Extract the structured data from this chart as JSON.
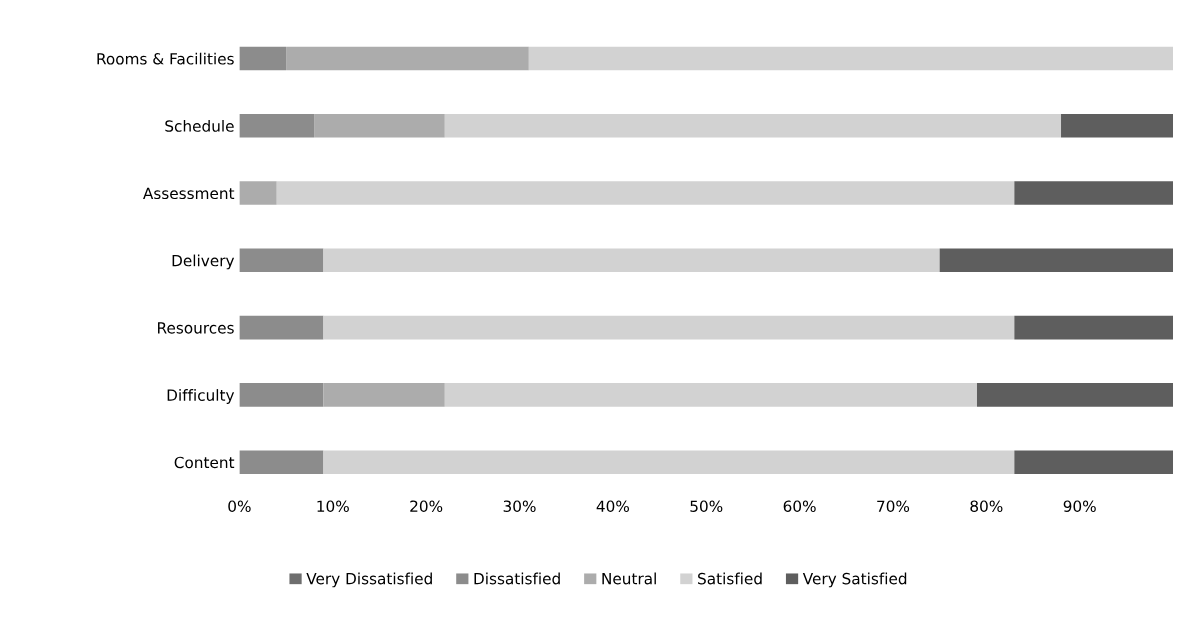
{
  "chart_data": {
    "type": "bar",
    "orientation": "horizontal",
    "stacked": true,
    "categories": [
      "Rooms & Facilities",
      "Schedule",
      "Assessment",
      "Delivery",
      "Resources",
      "Difficulty",
      "Content"
    ],
    "series": [
      {
        "name": "Very Dissatisfied",
        "color": "#6e6e6e",
        "values": [
          0,
          0,
          0,
          0,
          0,
          0,
          0
        ]
      },
      {
        "name": "Dissatisfied",
        "color": "#8c8c8c",
        "values": [
          5,
          8,
          0,
          9,
          9,
          9,
          9
        ]
      },
      {
        "name": "Neutral",
        "color": "#acacac",
        "values": [
          26,
          14,
          4,
          0,
          0,
          13,
          0
        ]
      },
      {
        "name": "Satisfied",
        "color": "#d2d2d2",
        "values": [
          69,
          66,
          79,
          66,
          74,
          57,
          74
        ]
      },
      {
        "name": "Very Satisfied",
        "color": "#5e5e5e",
        "values": [
          0,
          12,
          17,
          25,
          17,
          21,
          17
        ]
      }
    ],
    "xlim": [
      0,
      100
    ],
    "xticks": [
      {
        "value": 0,
        "label": "0%"
      },
      {
        "value": 10,
        "label": "10%"
      },
      {
        "value": 20,
        "label": "20%"
      },
      {
        "value": 30,
        "label": "30%"
      },
      {
        "value": 40,
        "label": "40%"
      },
      {
        "value": 50,
        "label": "50%"
      },
      {
        "value": 60,
        "label": "60%"
      },
      {
        "value": 70,
        "label": "70%"
      },
      {
        "value": 80,
        "label": "80%"
      },
      {
        "value": 90,
        "label": "90%"
      }
    ],
    "grid": false,
    "legend": "bottom"
  }
}
